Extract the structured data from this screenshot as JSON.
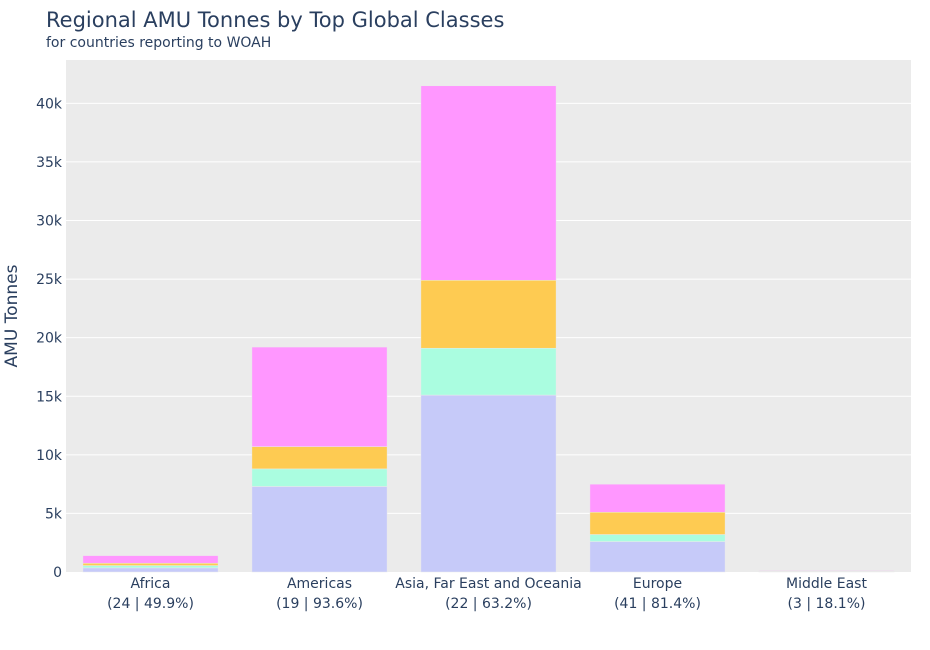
{
  "chart_data": {
    "type": "bar",
    "stacked": true,
    "title": "Regional AMU Tonnes by Top Global Classes",
    "subtitle": "for countries reporting to WOAH",
    "ylabel": "AMU Tonnes",
    "xlabel": "",
    "ylim": [
      0,
      43700
    ],
    "yticks": [
      0,
      5000,
      10000,
      15000,
      20000,
      25000,
      30000,
      35000,
      40000
    ],
    "ytick_labels": [
      "0",
      "5k",
      "10k",
      "15k",
      "20k",
      "25k",
      "30k",
      "35k",
      "40k"
    ],
    "categories": [
      "Africa",
      "Americas",
      "Asia, Far East and Oceania",
      "Europe",
      "Middle East"
    ],
    "category_sublabels": [
      "(24 | 49.9%)",
      "(19 | 93.6%)",
      "(22 | 63.2%)",
      "(41 | 81.4%)",
      "(3 | 18.1%)"
    ],
    "grid": true,
    "legend": "none",
    "series": [
      {
        "color": "#c6caf9",
        "values": [
          350,
          7300,
          15100,
          2600,
          40
        ]
      },
      {
        "color": "#aafde0",
        "values": [
          200,
          1500,
          4000,
          600,
          20
        ]
      },
      {
        "color": "#fecb52",
        "values": [
          200,
          1900,
          5800,
          1900,
          20
        ]
      },
      {
        "color": "#ff97ff",
        "values": [
          650,
          8500,
          16600,
          2400,
          50
        ]
      }
    ]
  }
}
